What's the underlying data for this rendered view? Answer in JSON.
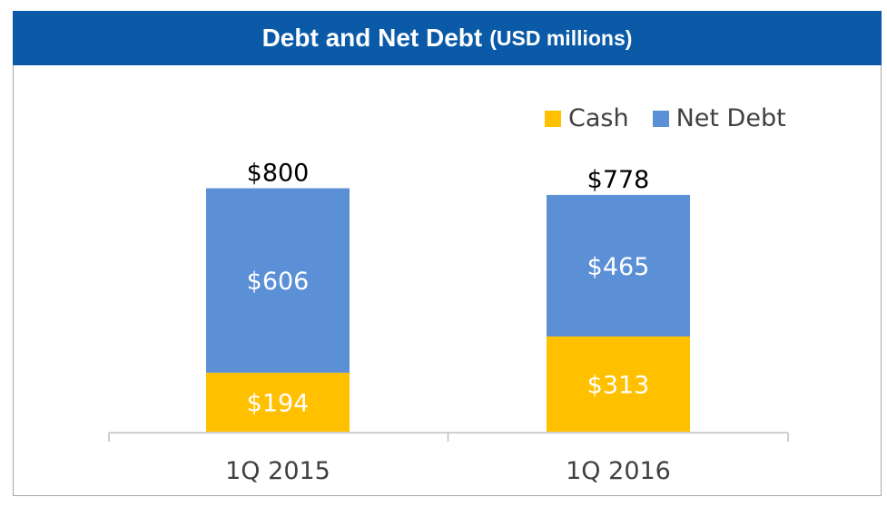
{
  "title": {
    "main": "Debt and Net Debt",
    "sub": "(USD millions)"
  },
  "colors": {
    "title_bg": "#0a5aa8",
    "cash": "#ffc000",
    "net_debt": "#5b8fd6",
    "axis": "#bfbfbf"
  },
  "chart_data": {
    "type": "bar",
    "stacked": true,
    "title": "Debt and Net Debt (USD millions)",
    "categories": [
      "1Q 2015",
      "1Q 2016"
    ],
    "series": [
      {
        "name": "Cash",
        "values": [
          194,
          313
        ],
        "labels": [
          "$194",
          "$313"
        ]
      },
      {
        "name": "Net Debt",
        "values": [
          606,
          465
        ],
        "labels": [
          "$606",
          "$465"
        ]
      }
    ],
    "totals": [
      800,
      778
    ],
    "total_labels": [
      "$800",
      "$778"
    ],
    "ylim": [
      0,
      900
    ],
    "legend_position": "top-right",
    "grid": false
  }
}
